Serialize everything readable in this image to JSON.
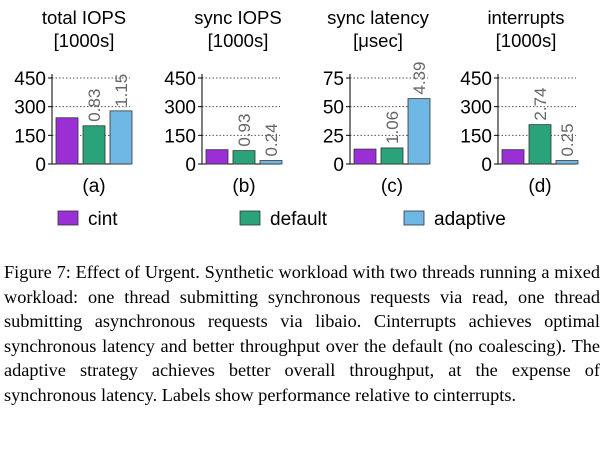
{
  "colors": {
    "cint": "#9b2fd6",
    "default": "#2aa27a",
    "adaptive": "#6fb8e6",
    "axis": "#000000",
    "grid": "#555555",
    "ratio_label": "#666666"
  },
  "legend": [
    {
      "key": "cint",
      "label": "cint"
    },
    {
      "key": "default",
      "label": "default"
    },
    {
      "key": "adaptive",
      "label": "adaptive"
    }
  ],
  "chart_data": [
    {
      "type": "bar",
      "panel": "(a)",
      "title": [
        "total IOPS",
        "[1000s]"
      ],
      "yticks": [
        "450",
        "300",
        "150",
        "0"
      ],
      "ylim": [
        0,
        450
      ],
      "categories": [
        "cint",
        "default",
        "adaptive"
      ],
      "values": [
        242,
        200,
        278
      ],
      "data_labels": [
        "",
        "0.83",
        "1.15"
      ]
    },
    {
      "type": "bar",
      "panel": "(b)",
      "title": [
        "sync IOPS",
        "[1000s]"
      ],
      "yticks": [
        "450",
        "300",
        "150",
        "0"
      ],
      "ylim": [
        0,
        450
      ],
      "categories": [
        "cint",
        "default",
        "adaptive"
      ],
      "values": [
        75,
        70,
        18
      ],
      "data_labels": [
        "",
        "0.93",
        "0.24"
      ]
    },
    {
      "type": "bar",
      "panel": "(c)",
      "title": [
        "sync latency",
        "[μsec]"
      ],
      "yticks": [
        "75",
        "50",
        "25",
        "0"
      ],
      "ylim": [
        0,
        75
      ],
      "categories": [
        "cint",
        "default",
        "adaptive"
      ],
      "values": [
        13,
        14,
        57
      ],
      "data_labels": [
        "",
        "1.06",
        "4.39"
      ]
    },
    {
      "type": "bar",
      "panel": "(d)",
      "title": [
        "interrupts",
        "[1000s]"
      ],
      "yticks": [
        "450",
        "300",
        "150",
        "0"
      ],
      "ylim": [
        0,
        450
      ],
      "categories": [
        "cint",
        "default",
        "adaptive"
      ],
      "values": [
        75,
        206,
        18
      ],
      "data_labels": [
        "",
        "2.74",
        "0.25"
      ]
    }
  ],
  "caption": "Figure 7: Effect of Urgent. Synthetic workload with two threads running a mixed workload: one thread submitting synchronous requests via read, one thread submitting asynchronous requests via libaio. Cinterrupts achieves optimal synchronous latency and better throughput over the default (no coalescing). The adaptive strategy achieves better overall throughput, at the expense of synchronous latency. Labels show performance relative to cinterrupts."
}
